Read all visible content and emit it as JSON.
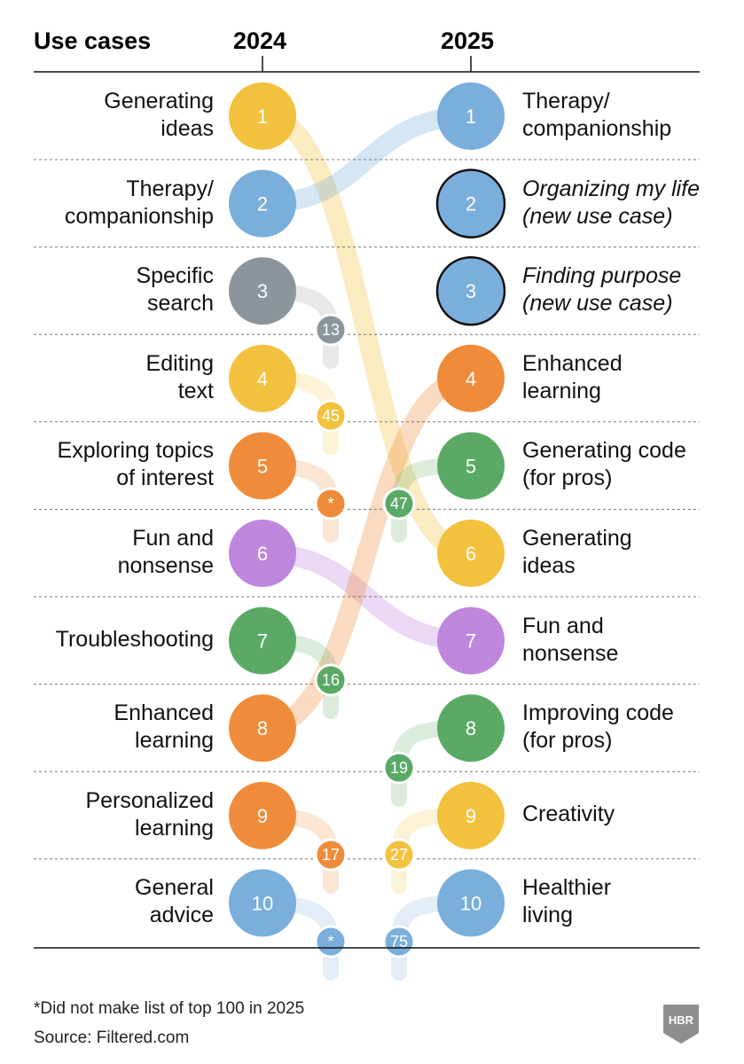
{
  "header": {
    "use_cases": "Use cases",
    "year_left": "2024",
    "year_right": "2025"
  },
  "rows_2024": [
    {
      "rank": "1",
      "label_lines": [
        "Generating",
        "ideas"
      ],
      "color": "#f2c23e",
      "moved_to": "6"
    },
    {
      "rank": "2",
      "label_lines": [
        "Therapy/",
        "companionship"
      ],
      "color": "#7aaedb",
      "moved_to": "1"
    },
    {
      "rank": "3",
      "label_lines": [
        "Specific",
        "search"
      ],
      "color": "#8c959c",
      "moved_to": "13"
    },
    {
      "rank": "4",
      "label_lines": [
        "Editing",
        "text"
      ],
      "color": "#f2c23e",
      "moved_to": "45"
    },
    {
      "rank": "5",
      "label_lines": [
        "Exploring topics",
        "of interest"
      ],
      "color": "#ef8c3c",
      "moved_to": "*"
    },
    {
      "rank": "6",
      "label_lines": [
        "Fun and",
        "nonsense"
      ],
      "color": "#be86dd",
      "moved_to": "7"
    },
    {
      "rank": "7",
      "label_lines": [
        "Troubleshooting"
      ],
      "color": "#5aaa66",
      "moved_to": "16"
    },
    {
      "rank": "8",
      "label_lines": [
        "Enhanced",
        "learning"
      ],
      "color": "#ef8c3c",
      "moved_to": "4"
    },
    {
      "rank": "9",
      "label_lines": [
        "Personalized",
        "learning"
      ],
      "color": "#ef8c3c",
      "moved_to": "17"
    },
    {
      "rank": "10",
      "label_lines": [
        "General",
        "advice"
      ],
      "color": "#7aaedb",
      "moved_to": "*"
    }
  ],
  "rows_2025": [
    {
      "rank": "1",
      "label_lines": [
        "Therapy/",
        "companionship"
      ],
      "color": "#7aaedb",
      "new": false,
      "moved_from": "2"
    },
    {
      "rank": "2",
      "label_lines": [
        "Organizing my life",
        "(new use case)"
      ],
      "color": "#7aaedb",
      "new": true,
      "moved_from": ""
    },
    {
      "rank": "3",
      "label_lines": [
        "Finding purpose",
        "(new use case)"
      ],
      "color": "#7aaedb",
      "new": true,
      "moved_from": ""
    },
    {
      "rank": "4",
      "label_lines": [
        "Enhanced",
        "learning"
      ],
      "color": "#ef8c3c",
      "new": false,
      "moved_from": "8"
    },
    {
      "rank": "5",
      "label_lines": [
        "Generating code",
        "(for pros)"
      ],
      "color": "#5aaa66",
      "new": false,
      "moved_from": "47"
    },
    {
      "rank": "6",
      "label_lines": [
        "Generating",
        "ideas"
      ],
      "color": "#f2c23e",
      "new": false,
      "moved_from": "1"
    },
    {
      "rank": "7",
      "label_lines": [
        "Fun and",
        "nonsense"
      ],
      "color": "#be86dd",
      "new": false,
      "moved_from": "6"
    },
    {
      "rank": "8",
      "label_lines": [
        "Improving code",
        "(for pros)"
      ],
      "color": "#5aaa66",
      "new": false,
      "moved_from": "19"
    },
    {
      "rank": "9",
      "label_lines": [
        "Creativity"
      ],
      "color": "#f2c23e",
      "new": false,
      "moved_from": "27"
    },
    {
      "rank": "10",
      "label_lines": [
        "Healthier",
        "living"
      ],
      "color": "#7aaedb",
      "new": false,
      "moved_from": "75"
    }
  ],
  "footnote": "*Did not make list of top 100 in 2025",
  "source": "Source: Filtered.com",
  "logo_text": "HBR"
}
